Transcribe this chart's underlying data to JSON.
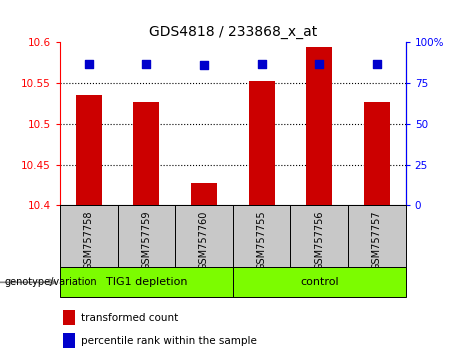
{
  "title": "GDS4818 / 233868_x_at",
  "samples": [
    "GSM757758",
    "GSM757759",
    "GSM757760",
    "GSM757755",
    "GSM757756",
    "GSM757757"
  ],
  "bar_values": [
    10.535,
    10.527,
    10.427,
    10.553,
    10.595,
    10.527
  ],
  "percentile_values": [
    87,
    87,
    86,
    87,
    87,
    87
  ],
  "ylim_left": [
    10.4,
    10.6
  ],
  "ylim_right": [
    0,
    100
  ],
  "yticks_left": [
    10.4,
    10.45,
    10.5,
    10.55,
    10.6
  ],
  "yticks_right": [
    0,
    25,
    50,
    75,
    100
  ],
  "ytick_labels_right": [
    "0",
    "25",
    "50",
    "75",
    "100%"
  ],
  "bar_color": "#cc0000",
  "percentile_color": "#0000cc",
  "grid_values": [
    10.45,
    10.5,
    10.55
  ],
  "group1_label": "TIG1 depletion",
  "group2_label": "control",
  "group_color": "#7cfc00",
  "xtick_bg_color": "#c8c8c8",
  "genotype_label": "genotype/variation",
  "legend_red_label": "transformed count",
  "legend_blue_label": "percentile rank within the sample",
  "title_fontsize": 10,
  "tick_fontsize": 7.5,
  "bar_width": 0.45,
  "perc_marker_size": 30
}
